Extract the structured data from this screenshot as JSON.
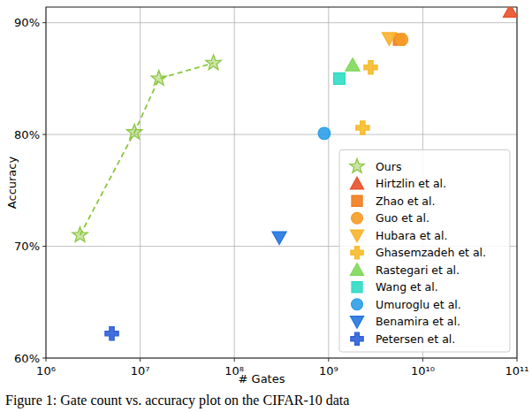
{
  "chart_data": {
    "type": "scatter",
    "x_label": "# Gates",
    "y_label": "Accuracy",
    "caption": "Figure 1: Gate count vs. accuracy plot on the CIFAR-10 data",
    "log": "x",
    "grid": true,
    "legend": "lower right",
    "xlim": [
      1000000,
      100000000000
    ],
    "xticks": [
      {
        "value": 1000000,
        "label": "10⁶"
      },
      {
        "value": 10000000,
        "label": "10⁷"
      },
      {
        "value": 100000000,
        "label": "10⁸"
      },
      {
        "value": 1000000000,
        "label": "10⁹"
      },
      {
        "value": 10000000000,
        "label": "10¹⁰"
      },
      {
        "value": 100000000000,
        "label": "10¹¹"
      }
    ],
    "ylim": [
      60,
      91.4
    ],
    "yticks": [
      {
        "value": 60,
        "label": "60%"
      },
      {
        "value": 70,
        "label": "70%"
      },
      {
        "value": 80,
        "label": "80%"
      },
      {
        "value": 90,
        "label": "90%"
      }
    ],
    "series": [
      {
        "name": "Ours",
        "color": "#8cc63f",
        "marker": "star",
        "line_style": "dashed",
        "x": [
          2300000,
          8700000,
          15800000,
          60000000
        ],
        "values": [
          71.0,
          80.2,
          85.0,
          86.4
        ]
      },
      {
        "name": "Hirtzlin et al.",
        "color": "#e8502a",
        "marker": "triangle-up",
        "x": [
          85000000000
        ],
        "values": [
          91.0
        ]
      },
      {
        "name": "Zhao et al.",
        "color": "#f07c1c",
        "marker": "square",
        "x": [
          5600000000
        ],
        "values": [
          88.5
        ]
      },
      {
        "name": "Guo et al.",
        "color": "#f59b26",
        "marker": "circle",
        "x": [
          6000000000
        ],
        "values": [
          88.5
        ]
      },
      {
        "name": "Hubara et al.",
        "color": "#f7b32b",
        "marker": "triangle-down",
        "x": [
          4400000000
        ],
        "values": [
          88.6
        ]
      },
      {
        "name": "Ghasemzadeh et al.",
        "color": "#f5bb2a",
        "marker": "plus",
        "x": [
          2800000000,
          2300000000
        ],
        "values": [
          86.0,
          80.6
        ]
      },
      {
        "name": "Rastegari et al.",
        "color": "#7fd85a",
        "marker": "triangle-up",
        "x": [
          1800000000
        ],
        "values": [
          86.2
        ]
      },
      {
        "name": "Wang et al.",
        "color": "#2fdcc4",
        "marker": "square",
        "x": [
          1300000000
        ],
        "values": [
          85.0
        ]
      },
      {
        "name": "Umuroglu et al.",
        "color": "#2e9fe8",
        "marker": "circle",
        "x": [
          900000000
        ],
        "values": [
          80.1
        ]
      },
      {
        "name": "Benamira et al.",
        "color": "#2275e0",
        "marker": "triangle-down",
        "x": [
          300000000
        ],
        "values": [
          70.8
        ]
      },
      {
        "name": "Petersen et al.",
        "color": "#2d5fd8",
        "marker": "plus",
        "x": [
          5000000
        ],
        "values": [
          62.2
        ]
      }
    ]
  }
}
